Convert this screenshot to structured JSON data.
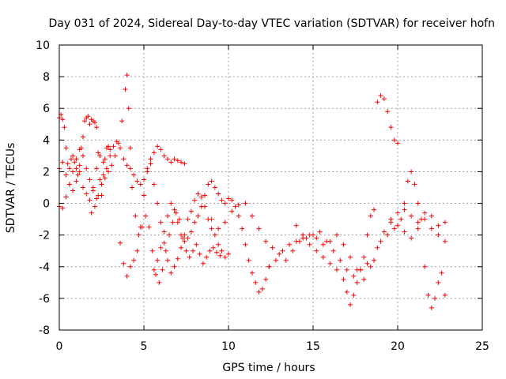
{
  "chart_data": {
    "type": "scatter",
    "title": "Day 031 of 2024, Sidereal Day-to-day VTEC variation (SDTVAR) for receiver hofn",
    "xlabel": "GPS time / hours",
    "ylabel": "SDTVAR / TECUs",
    "xlim": [
      0,
      25
    ],
    "ylim": [
      -8,
      10
    ],
    "xticks": [
      0,
      5,
      10,
      15,
      20,
      25
    ],
    "yticks": [
      -8,
      -6,
      -4,
      -2,
      0,
      2,
      4,
      6,
      8,
      10
    ],
    "xtick_labels": [
      "0",
      "5",
      "10",
      "15",
      "20",
      "25"
    ],
    "ytick_labels": [
      "-8",
      "-6",
      "-4",
      "-2",
      "0",
      "2",
      "4",
      "6",
      "8",
      "10"
    ],
    "grid": true,
    "marker": "+",
    "color": "#ff0000",
    "series": [
      {
        "name": "s1",
        "x": [
          0.0,
          0.1,
          0.2,
          0.3,
          0.4,
          0.5,
          0.6,
          0.7,
          0.8,
          0.9,
          1.0,
          1.1,
          1.2,
          1.3,
          1.4,
          1.5,
          1.6,
          1.7,
          1.8,
          1.9,
          2.0,
          2.1,
          2.2,
          2.3,
          2.4,
          2.5,
          2.6,
          2.7,
          2.8,
          2.9,
          3.0
        ],
        "y": [
          5.4,
          5.6,
          5.3,
          4.8,
          3.5,
          2.5,
          2.2,
          2.8,
          3.0,
          2.6,
          2.2,
          1.8,
          2.4,
          3.5,
          4.2,
          5.2,
          5.4,
          5.5,
          5.0,
          5.3,
          5.2,
          5.1,
          4.8,
          3.2,
          1.5,
          0.5,
          1.8,
          2.8,
          3.5,
          3.6,
          3.4
        ]
      },
      {
        "name": "s2",
        "x": [
          0.0,
          0.2,
          0.4,
          0.6,
          0.8,
          1.0,
          1.2,
          1.4,
          1.6,
          1.8,
          2.0,
          2.2,
          2.4,
          2.6,
          2.8,
          3.0,
          3.2,
          3.4,
          3.6,
          3.8,
          4.0,
          4.2,
          4.4,
          4.6,
          4.8,
          5.0,
          5.2,
          5.4,
          5.6,
          5.8,
          6.0,
          6.2,
          6.4,
          6.6,
          6.8,
          7.0,
          7.2,
          7.4
        ],
        "y": [
          2.2,
          2.6,
          1.8,
          1.2,
          0.8,
          1.4,
          2.0,
          1.0,
          0.6,
          0.2,
          1.0,
          2.2,
          3.0,
          2.6,
          2.2,
          3.0,
          3.6,
          3.9,
          3.5,
          2.8,
          2.4,
          2.2,
          1.8,
          1.4,
          1.2,
          1.5,
          2.2,
          2.8,
          3.2,
          3.6,
          3.4,
          3.0,
          2.8,
          2.6,
          2.8,
          2.7,
          2.6,
          2.5
        ]
      },
      {
        "name": "s3",
        "x": [
          0.0,
          0.2,
          0.4,
          0.6,
          0.8,
          1.0,
          1.2,
          1.4,
          1.6,
          1.8,
          2.0,
          2.2
        ],
        "y": [
          -0.2,
          -0.3,
          0.4,
          1.2,
          2.0,
          2.8,
          3.4,
          3.0,
          2.2,
          1.5,
          0.8,
          0.3
        ]
      },
      {
        "name": "s4",
        "x": [
          1.9,
          2.1,
          2.3,
          2.5,
          2.7,
          2.9,
          3.1,
          3.3,
          3.5,
          3.7,
          3.9,
          4.0,
          4.1,
          4.2,
          4.3,
          4.5,
          4.7,
          4.9,
          5.1,
          5.3,
          5.5,
          5.7,
          5.9,
          6.1,
          6.3,
          6.5,
          6.7,
          6.9,
          7.1,
          7.3,
          7.5,
          7.7,
          7.9,
          8.1,
          8.3,
          8.5,
          8.7,
          8.9,
          9.1,
          9.3,
          9.5
        ],
        "y": [
          -0.6,
          -0.2,
          0.5,
          1.2,
          1.6,
          2.0,
          2.4,
          3.0,
          3.8,
          5.2,
          7.2,
          8.1,
          6.0,
          3.5,
          1.0,
          -0.8,
          -2.0,
          -1.5,
          -0.8,
          -1.5,
          -3.0,
          -4.5,
          -5.0,
          -4.2,
          -3.0,
          -2.0,
          -1.2,
          -0.6,
          -1.0,
          -2.2,
          -3.0,
          -3.4,
          -3.0,
          -2.6,
          -3.2,
          -3.8,
          -3.4,
          -3.0,
          -2.8,
          -3.1,
          -3.3
        ]
      },
      {
        "name": "s5",
        "x": [
          3.6,
          3.8,
          4.0,
          4.2,
          4.4,
          4.6,
          4.8,
          5.0,
          5.2,
          5.4,
          5.6,
          5.8,
          6.0,
          6.2,
          6.4,
          6.6,
          6.8,
          7.0,
          7.2,
          7.4,
          7.6,
          7.8,
          8.0,
          8.2,
          8.4,
          8.6,
          8.8,
          9.0,
          9.2,
          9.4,
          9.6,
          9.8,
          10.0
        ],
        "y": [
          -2.5,
          -3.8,
          -4.6,
          -4.0,
          -3.6,
          -3.0,
          -1.5,
          0.5,
          2.0,
          2.5,
          1.2,
          0.0,
          -1.2,
          -2.5,
          -3.6,
          -4.4,
          -4.0,
          -3.5,
          -2.8,
          -2.0,
          -1.0,
          -0.5,
          0.2,
          0.6,
          0.4,
          -0.2,
          -1.0,
          -1.6,
          -2.0,
          -2.6,
          -3.0,
          -3.4,
          -3.2
        ]
      },
      {
        "name": "s6",
        "x": [
          5.6,
          5.8,
          6.0,
          6.2,
          6.4,
          6.6,
          6.8,
          7.0,
          7.2,
          7.4,
          7.6,
          7.8,
          8.0,
          8.2,
          8.4,
          8.6,
          8.8,
          9.0,
          9.2,
          9.4,
          9.6,
          9.8,
          10.0,
          10.2,
          10.4,
          10.6,
          10.8,
          11.0,
          11.2,
          11.4,
          11.6,
          11.8,
          12.0,
          12.2,
          12.4
        ],
        "y": [
          -4.2,
          -3.6,
          -2.8,
          -1.8,
          -0.8,
          0.0,
          -0.4,
          -1.2,
          -2.0,
          -2.4,
          -2.2,
          -1.8,
          -1.2,
          -0.8,
          -0.2,
          0.5,
          1.2,
          1.4,
          1.0,
          0.6,
          0.2,
          0.0,
          0.3,
          0.2,
          -0.2,
          -0.8,
          -1.6,
          -2.6,
          -3.6,
          -4.4,
          -5.0,
          -5.6,
          -5.4,
          -4.8,
          -4.0
        ]
      },
      {
        "name": "s7",
        "x": [
          9.0,
          9.4,
          9.8,
          10.2,
          10.6,
          11.0,
          11.4,
          11.8,
          12.2,
          12.6,
          13.0,
          13.4,
          13.8,
          14.2,
          14.6,
          15.0,
          15.4,
          15.8,
          16.2,
          16.6,
          17.0,
          17.4,
          17.8,
          18.2,
          18.6
        ],
        "y": [
          -1.0,
          -1.6,
          -1.2,
          -0.5,
          -0.1,
          0.0,
          -0.8,
          -1.6,
          -2.4,
          -2.8,
          -3.2,
          -3.6,
          -3.0,
          -2.4,
          -2.2,
          -2.0,
          -1.8,
          -2.4,
          -3.0,
          -3.6,
          -4.2,
          -4.6,
          -4.2,
          -3.8,
          -3.6
        ]
      },
      {
        "name": "s8",
        "x": [
          12.4,
          12.8,
          13.2,
          13.6,
          14.0,
          14.4,
          14.8,
          15.2,
          15.6,
          16.0,
          16.4,
          16.8,
          17.2,
          17.6,
          18.0,
          18.4,
          18.8,
          19.2,
          19.6,
          20.0,
          20.4,
          20.8,
          21.2,
          21.6,
          22.0,
          22.4,
          22.8
        ],
        "y": [
          -4.0,
          -3.6,
          -3.0,
          -2.6,
          -2.4,
          -2.2,
          -2.0,
          -2.2,
          -2.6,
          -2.4,
          -2.0,
          -2.6,
          -3.4,
          -4.2,
          -4.8,
          -4.0,
          -2.8,
          -1.8,
          -1.0,
          -0.6,
          -0.4,
          -0.8,
          -1.2,
          -0.6,
          -0.8,
          -1.4,
          -1.2
        ]
      },
      {
        "name": "s9",
        "x": [
          14.0,
          14.4,
          14.8,
          15.2,
          15.6,
          16.0,
          16.4,
          16.8,
          17.0,
          17.2,
          17.4,
          17.6,
          17.8,
          18.0,
          18.2,
          18.4,
          18.6
        ],
        "y": [
          -1.4,
          -2.0,
          -2.6,
          -3.0,
          -3.4,
          -3.8,
          -4.2,
          -4.8,
          -5.6,
          -6.4,
          -5.8,
          -5.0,
          -4.2,
          -3.4,
          -2.0,
          -0.8,
          -0.4
        ]
      },
      {
        "name": "s10",
        "x": [
          18.8,
          19.0,
          19.2,
          19.4,
          19.6,
          19.8,
          20.0
        ],
        "y": [
          6.4,
          6.8,
          6.6,
          5.8,
          4.8,
          4.0,
          3.8
        ]
      },
      {
        "name": "s11",
        "x": [
          19.0,
          19.4,
          19.8,
          20.2,
          20.4,
          20.6,
          20.8,
          21.0,
          21.2,
          21.4,
          21.6,
          21.8,
          22.0,
          22.2,
          22.4,
          22.6,
          22.8
        ],
        "y": [
          -2.4,
          -2.0,
          -1.6,
          -1.0,
          0.0,
          1.4,
          2.0,
          1.2,
          0.0,
          -1.0,
          -4.0,
          -5.8,
          -6.6,
          -6.0,
          -5.0,
          -4.4,
          -5.8
        ]
      },
      {
        "name": "s12",
        "x": [
          19.6,
          20.0,
          20.4,
          20.8,
          21.2,
          21.6,
          22.0,
          22.4,
          22.8
        ],
        "y": [
          -1.2,
          -1.4,
          -1.8,
          -2.2,
          -1.6,
          -1.0,
          -1.6,
          -2.0,
          -2.4
        ]
      }
    ]
  }
}
